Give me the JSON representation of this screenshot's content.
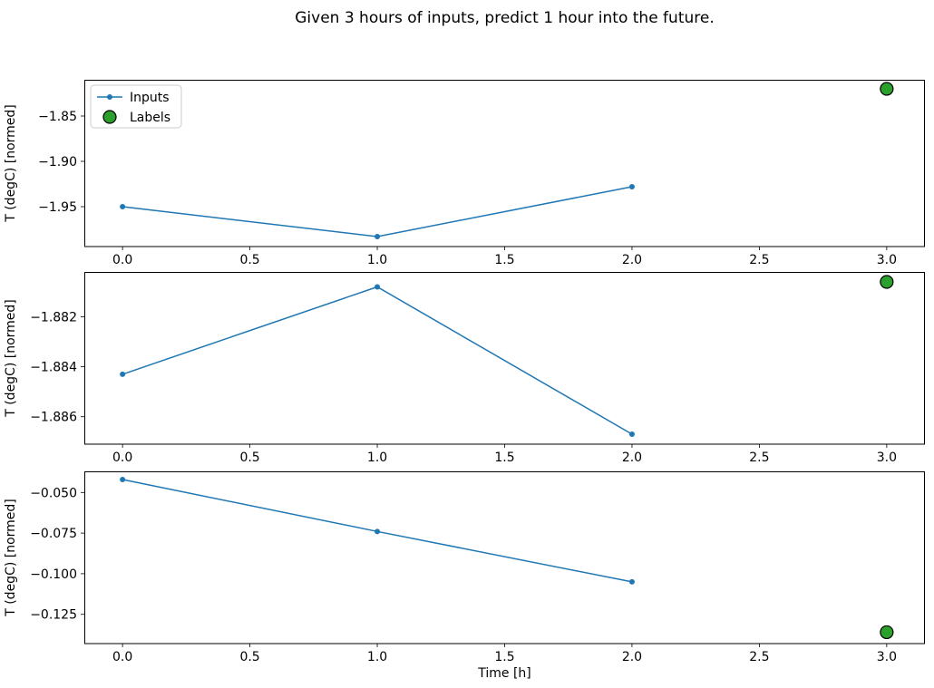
{
  "figure": {
    "title": "Given 3 hours of inputs, predict 1 hour into the future.",
    "xlabel": "Time [h]",
    "colors": {
      "inputs": "#1f77b4",
      "labels": "#2ca02c",
      "label_edge": "#000000"
    }
  },
  "legend": {
    "items": [
      {
        "label": "Inputs"
      },
      {
        "label": "Labels"
      }
    ]
  },
  "chart_data": [
    {
      "type": "line",
      "ylabel": "T (degC) [normed]",
      "x": [
        0,
        1,
        2
      ],
      "series": [
        {
          "name": "Inputs",
          "values": [
            -1.95,
            -1.983,
            -1.928
          ]
        }
      ],
      "label_point": {
        "x": 3,
        "y": -1.82,
        "name": "Labels"
      },
      "xlim": [
        -0.15,
        3.15
      ],
      "ylim": [
        -1.994,
        -1.81
      ],
      "xticks": [
        0,
        0.5,
        1,
        1.5,
        2,
        2.5,
        3
      ],
      "xtick_labels": [
        "0.0",
        "0.5",
        "1.0",
        "1.5",
        "2.0",
        "2.5",
        "3.0"
      ],
      "yticks": [
        -1.85,
        -1.9,
        -1.95
      ],
      "ytick_labels": [
        "−1.85",
        "−1.90",
        "−1.95"
      ],
      "legend": true,
      "grid": false
    },
    {
      "type": "line",
      "ylabel": "T (degC) [normed]",
      "x": [
        0,
        1,
        2
      ],
      "series": [
        {
          "name": "Inputs",
          "values": [
            -1.8843,
            -1.8808,
            -1.8867
          ]
        }
      ],
      "label_point": {
        "x": 3,
        "y": -1.8806,
        "name": "Labels"
      },
      "xlim": [
        -0.15,
        3.15
      ],
      "ylim": [
        -1.8871,
        -1.8802
      ],
      "xticks": [
        0,
        0.5,
        1,
        1.5,
        2,
        2.5,
        3
      ],
      "xtick_labels": [
        "0.0",
        "0.5",
        "1.0",
        "1.5",
        "2.0",
        "2.5",
        "3.0"
      ],
      "yticks": [
        -1.882,
        -1.884,
        -1.886
      ],
      "ytick_labels": [
        "−1.882",
        "−1.884",
        "−1.886"
      ],
      "legend": false,
      "grid": false
    },
    {
      "type": "line",
      "ylabel": "T (degC) [normed]",
      "x": [
        0,
        1,
        2
      ],
      "series": [
        {
          "name": "Inputs",
          "values": [
            -0.042,
            -0.074,
            -0.105
          ]
        }
      ],
      "label_point": {
        "x": 3,
        "y": -0.136,
        "name": "Labels"
      },
      "xlim": [
        -0.15,
        3.15
      ],
      "ylim": [
        -0.143,
        -0.037
      ],
      "xticks": [
        0,
        0.5,
        1,
        1.5,
        2,
        2.5,
        3
      ],
      "xtick_labels": [
        "0.0",
        "0.5",
        "1.0",
        "1.5",
        "2.0",
        "2.5",
        "3.0"
      ],
      "yticks": [
        -0.05,
        -0.075,
        -0.1,
        -0.125
      ],
      "ytick_labels": [
        "−0.050",
        "−0.075",
        "−0.100",
        "−0.125"
      ],
      "legend": false,
      "grid": false
    }
  ]
}
